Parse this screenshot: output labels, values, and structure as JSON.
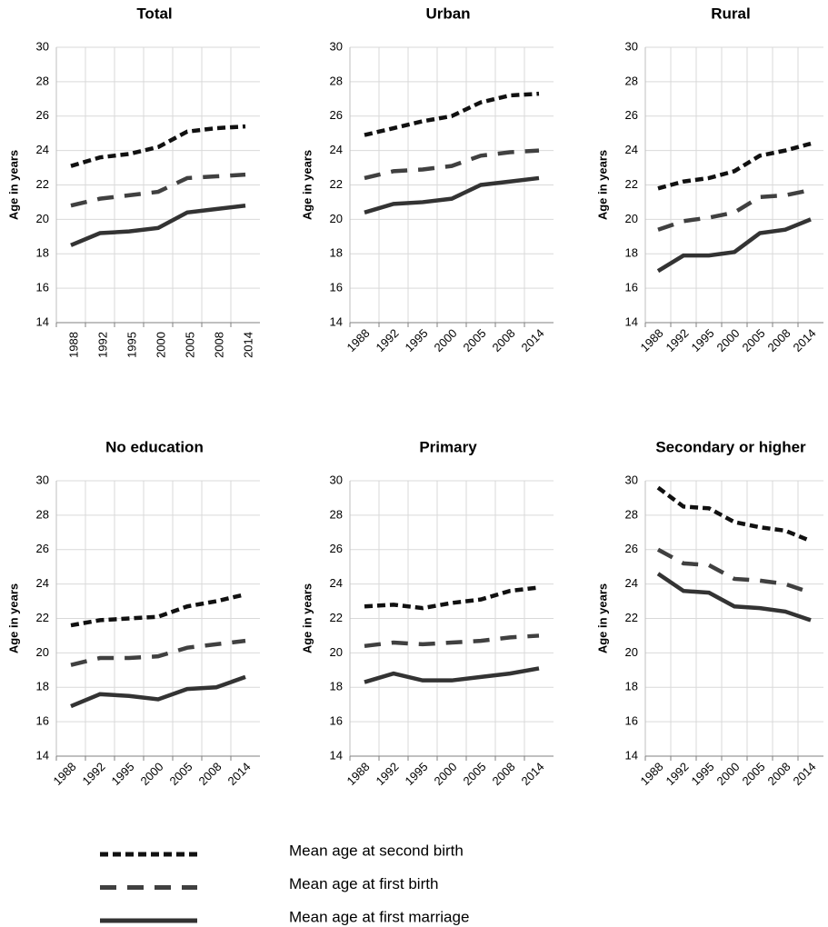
{
  "chart_data": [
    {
      "type": "line",
      "title": "Total",
      "y_label": "Age in years",
      "categories": [
        "1988",
        "1992",
        "1995",
        "2000",
        "2005",
        "2008",
        "2014"
      ],
      "series": [
        {
          "name": "Mean age at second birth",
          "color": "#111111",
          "dash": "short",
          "values": [
            23.1,
            23.6,
            23.8,
            24.2,
            25.1,
            25.3,
            25.4
          ]
        },
        {
          "name": "Mean age at first birth",
          "color": "#404040",
          "dash": "long",
          "values": [
            20.8,
            21.2,
            21.4,
            21.6,
            22.4,
            22.5,
            22.6
          ]
        },
        {
          "name": "Mean age at first marriage",
          "color": "#333333",
          "dash": "solid",
          "values": [
            18.5,
            19.2,
            19.3,
            19.5,
            20.4,
            20.6,
            20.8
          ]
        }
      ],
      "ylim": [
        14,
        30
      ],
      "yticks": [
        14,
        16,
        18,
        20,
        22,
        24,
        26,
        28,
        30
      ],
      "grid": true,
      "xtick_rotation": -90
    },
    {
      "type": "line",
      "title": "Urban",
      "y_label": "Age in years",
      "categories": [
        "1988",
        "1992",
        "1995",
        "2000",
        "2005",
        "2008",
        "2014"
      ],
      "series": [
        {
          "name": "Mean age at second birth",
          "color": "#111111",
          "dash": "short",
          "values": [
            24.9,
            25.3,
            25.7,
            26.0,
            26.8,
            27.2,
            27.3
          ]
        },
        {
          "name": "Mean age at first birth",
          "color": "#404040",
          "dash": "long",
          "values": [
            22.4,
            22.8,
            22.9,
            23.1,
            23.7,
            23.9,
            24.0
          ]
        },
        {
          "name": "Mean age at first marriage",
          "color": "#333333",
          "dash": "solid",
          "values": [
            20.4,
            20.9,
            21.0,
            21.2,
            22.0,
            22.2,
            22.4
          ]
        }
      ],
      "ylim": [
        14,
        30
      ],
      "yticks": [
        14,
        16,
        18,
        20,
        22,
        24,
        26,
        28,
        30
      ],
      "grid": true,
      "xtick_rotation": -45
    },
    {
      "type": "line",
      "title": "Rural",
      "y_label": "Age in years",
      "categories": [
        "1988",
        "1992",
        "1995",
        "2000",
        "2005",
        "2008",
        "2014"
      ],
      "series": [
        {
          "name": "Mean age at second birth",
          "color": "#111111",
          "dash": "short",
          "values": [
            21.8,
            22.2,
            22.4,
            22.8,
            23.7,
            24.0,
            24.4
          ]
        },
        {
          "name": "Mean age at first birth",
          "color": "#404040",
          "dash": "long",
          "values": [
            19.4,
            19.9,
            20.1,
            20.4,
            21.3,
            21.4,
            21.7
          ]
        },
        {
          "name": "Mean age at first marriage",
          "color": "#333333",
          "dash": "solid",
          "values": [
            17.0,
            17.9,
            17.9,
            18.1,
            19.2,
            19.4,
            20.0
          ]
        }
      ],
      "ylim": [
        14,
        30
      ],
      "yticks": [
        14,
        16,
        18,
        20,
        22,
        24,
        26,
        28,
        30
      ],
      "grid": true,
      "xtick_rotation": -45
    },
    {
      "type": "line",
      "title": "No education",
      "y_label": "Age in years",
      "categories": [
        "1988",
        "1992",
        "1995",
        "2000",
        "2005",
        "2008",
        "2014"
      ],
      "series": [
        {
          "name": "Mean age at second birth",
          "color": "#111111",
          "dash": "short",
          "values": [
            21.6,
            21.9,
            22.0,
            22.1,
            22.7,
            23.0,
            23.4
          ]
        },
        {
          "name": "Mean age at first birth",
          "color": "#404040",
          "dash": "long",
          "values": [
            19.3,
            19.7,
            19.7,
            19.8,
            20.3,
            20.5,
            20.7
          ]
        },
        {
          "name": "Mean age at first marriage",
          "color": "#333333",
          "dash": "solid",
          "values": [
            16.9,
            17.6,
            17.5,
            17.3,
            17.9,
            18.0,
            18.6
          ]
        }
      ],
      "ylim": [
        14,
        30
      ],
      "yticks": [
        14,
        16,
        18,
        20,
        22,
        24,
        26,
        28,
        30
      ],
      "grid": true,
      "xtick_rotation": -45
    },
    {
      "type": "line",
      "title": "Primary",
      "y_label": "Age in years",
      "categories": [
        "1988",
        "1992",
        "1995",
        "2000",
        "2005",
        "2008",
        "2014"
      ],
      "series": [
        {
          "name": "Mean age at second birth",
          "color": "#111111",
          "dash": "short",
          "values": [
            22.7,
            22.8,
            22.6,
            22.9,
            23.1,
            23.6,
            23.8
          ]
        },
        {
          "name": "Mean age at first birth",
          "color": "#404040",
          "dash": "long",
          "values": [
            20.4,
            20.6,
            20.5,
            20.6,
            20.7,
            20.9,
            21.0
          ]
        },
        {
          "name": "Mean age at first marriage",
          "color": "#333333",
          "dash": "solid",
          "values": [
            18.3,
            18.8,
            18.4,
            18.4,
            18.6,
            18.8,
            19.1
          ]
        }
      ],
      "ylim": [
        14,
        30
      ],
      "yticks": [
        14,
        16,
        18,
        20,
        22,
        24,
        26,
        28,
        30
      ],
      "grid": true,
      "xtick_rotation": -45
    },
    {
      "type": "line",
      "title": "Secondary or higher",
      "y_label": "Age in years",
      "categories": [
        "1988",
        "1992",
        "1995",
        "2000",
        "2005",
        "2008",
        "2014"
      ],
      "series": [
        {
          "name": "Mean age at second birth",
          "color": "#111111",
          "dash": "short",
          "values": [
            29.6,
            28.5,
            28.4,
            27.6,
            27.3,
            27.1,
            26.5
          ]
        },
        {
          "name": "Mean age at first birth",
          "color": "#404040",
          "dash": "long",
          "values": [
            26.0,
            25.2,
            25.1,
            24.3,
            24.2,
            24.0,
            23.5
          ]
        },
        {
          "name": "Mean age at first marriage",
          "color": "#333333",
          "dash": "solid",
          "values": [
            24.6,
            23.6,
            23.5,
            22.7,
            22.6,
            22.4,
            21.9
          ]
        }
      ],
      "ylim": [
        14,
        30
      ],
      "yticks": [
        14,
        16,
        18,
        20,
        22,
        24,
        26,
        28,
        30
      ],
      "grid": true,
      "xtick_rotation": -45
    }
  ]
}
